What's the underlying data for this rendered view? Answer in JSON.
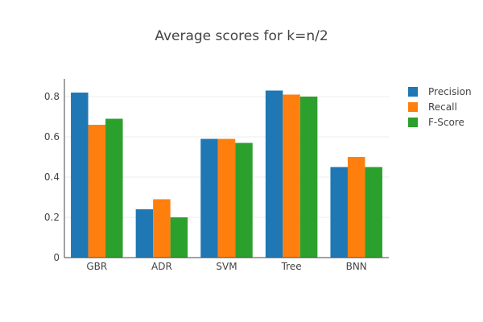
{
  "chart_data": {
    "type": "bar",
    "title": "Average scores for k=n/2",
    "categories": [
      "GBR",
      "ADR",
      "SVM",
      "Tree",
      "BNN"
    ],
    "series": [
      {
        "name": "Precision",
        "color": "#1f77b4",
        "values": [
          0.82,
          0.24,
          0.59,
          0.83,
          0.45
        ]
      },
      {
        "name": "Recall",
        "color": "#ff7f0e",
        "values": [
          0.66,
          0.29,
          0.59,
          0.81,
          0.5
        ]
      },
      {
        "name": "F-Score",
        "color": "#2ca02c",
        "values": [
          0.69,
          0.2,
          0.57,
          0.8,
          0.45
        ]
      }
    ],
    "y_ticks": [
      "0",
      "0.2",
      "0.4",
      "0.6",
      "0.8"
    ],
    "ylim": [
      0,
      0.88
    ],
    "grid": true,
    "legend_position": "top-right"
  }
}
